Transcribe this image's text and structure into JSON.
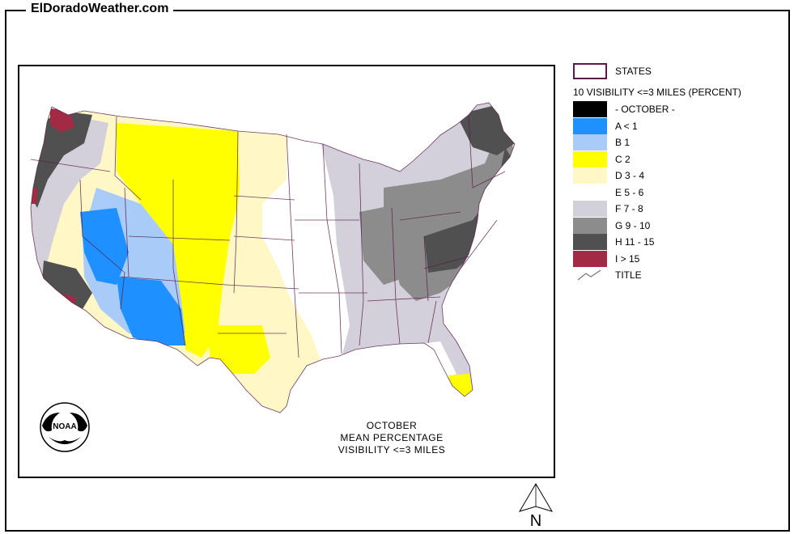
{
  "site": {
    "title": "ElDoradoWeather.com"
  },
  "map": {
    "caption": [
      "OCTOBER",
      "MEAN PERCENTAGE",
      "VISIBILITY <=3 MILES"
    ],
    "logo_text": "NOAA",
    "north_label": "N"
  },
  "legend": {
    "states_label": "STATES",
    "subtitle": "10 VISIBILITY <=3 MILES (PERCENT)",
    "classes": [
      {
        "label": "- OCTOBER -",
        "color": "#000000"
      },
      {
        "label": "A < 1",
        "color": "#1e90ff"
      },
      {
        "label": "B 1",
        "color": "#a8cbf8"
      },
      {
        "label": "C 2",
        "color": "#ffff00"
      },
      {
        "label": "D 3 - 4",
        "color": "#fff8c6"
      },
      {
        "label": "E 5 - 6",
        "color": "#ffffff"
      },
      {
        "label": "F 7 - 8",
        "color": "#d3d0dc"
      },
      {
        "label": "G 9 - 10",
        "color": "#8c8c8c"
      },
      {
        "label": "H 11 - 15",
        "color": "#505050"
      },
      {
        "label": "I > 15",
        "color": "#a32a45"
      }
    ],
    "title_label": "TITLE",
    "states_color": "#5a1a4a"
  }
}
